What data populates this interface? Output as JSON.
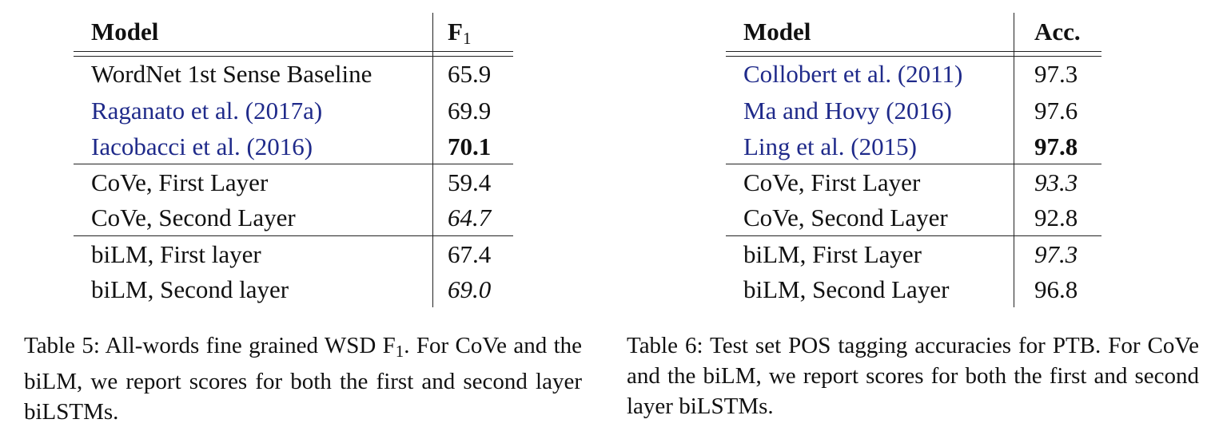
{
  "table5": {
    "header": {
      "model": "Model",
      "metric": "F",
      "metric_sub": "1"
    },
    "rows": [
      {
        "model": "WordNet 1st Sense Baseline",
        "value": "65.9"
      },
      {
        "model": "Raganato et al. (2017a)",
        "value": "69.9"
      },
      {
        "model": "Iacobacci et al. (2016)",
        "value": "70.1"
      },
      {
        "model": "CoVe, First Layer",
        "value": "59.4"
      },
      {
        "model": "CoVe, Second Layer",
        "value": "64.7"
      },
      {
        "model": "biLM, First layer",
        "value": "67.4"
      },
      {
        "model": "biLM, Second layer",
        "value": "69.0"
      }
    ],
    "caption": {
      "label": "Table 5:",
      "text_before_sub": " All-words fine grained WSD F",
      "sub": "1",
      "text_after_sub": ". For CoVe and the biLM, we report scores for both the first and second layer biLSTMs."
    }
  },
  "table6": {
    "header": {
      "model": "Model",
      "metric": "Acc."
    },
    "rows": [
      {
        "model": "Collobert et al. (2011)",
        "value": "97.3"
      },
      {
        "model": "Ma and Hovy (2016)",
        "value": "97.6"
      },
      {
        "model": "Ling et al. (2015)",
        "value": "97.8"
      },
      {
        "model": "CoVe, First Layer",
        "value": "93.3"
      },
      {
        "model": "CoVe, Second Layer",
        "value": "92.8"
      },
      {
        "model": "biLM, First Layer",
        "value": "97.3"
      },
      {
        "model": "biLM, Second Layer",
        "value": "96.8"
      }
    ],
    "caption": {
      "label": "Table 6:",
      "text": " Test set POS tagging accuracies for PTB. For CoVe and the biLM, we report scores for both the first and second layer biLSTMs."
    }
  },
  "colors": {
    "citation": "#1f2a8a",
    "text": "#111111"
  }
}
